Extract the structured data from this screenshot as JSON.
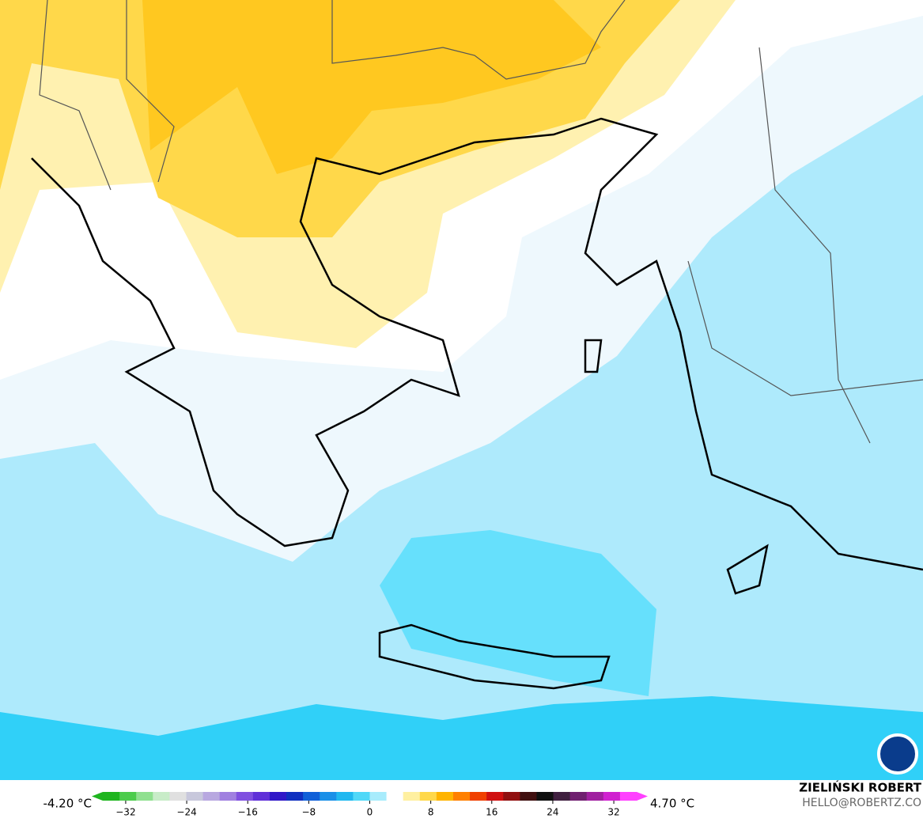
{
  "map": {
    "colorbar": {
      "min_label": "-4.20 °C",
      "max_label": "4.70 °C",
      "range": [
        -35,
        35
      ],
      "ticks": [
        {
          "value": -32,
          "label": "−32"
        },
        {
          "value": -24,
          "label": "−24"
        },
        {
          "value": -16,
          "label": "−16"
        },
        {
          "value": -8,
          "label": "−8"
        },
        0,
        8,
        16,
        24,
        32
      ],
      "colors": [
        "#1fb51f",
        "#4ccc4c",
        "#8fe08f",
        "#c8ecc8",
        "#e0e0e0",
        "#c8c8dc",
        "#b8a8e0",
        "#a080e0",
        "#8050e0",
        "#6030d8",
        "#3018c8",
        "#1030c0",
        "#1060d8",
        "#1a90e8",
        "#20b8f0",
        "#50d8f8",
        "#a8ecfc",
        "#ffffff",
        "#fff0a0",
        "#ffd84a",
        "#ffb400",
        "#ff8000",
        "#f04000",
        "#d01010",
        "#901010",
        "#401010",
        "#101010",
        "#402040",
        "#702070",
        "#a020a0",
        "#d020d0",
        "#ff40ff"
      ]
    },
    "credit": {
      "name": "ZIELIŃSKI ROBERT",
      "email": "HELLO@ROBERTZ.CO"
    }
  }
}
